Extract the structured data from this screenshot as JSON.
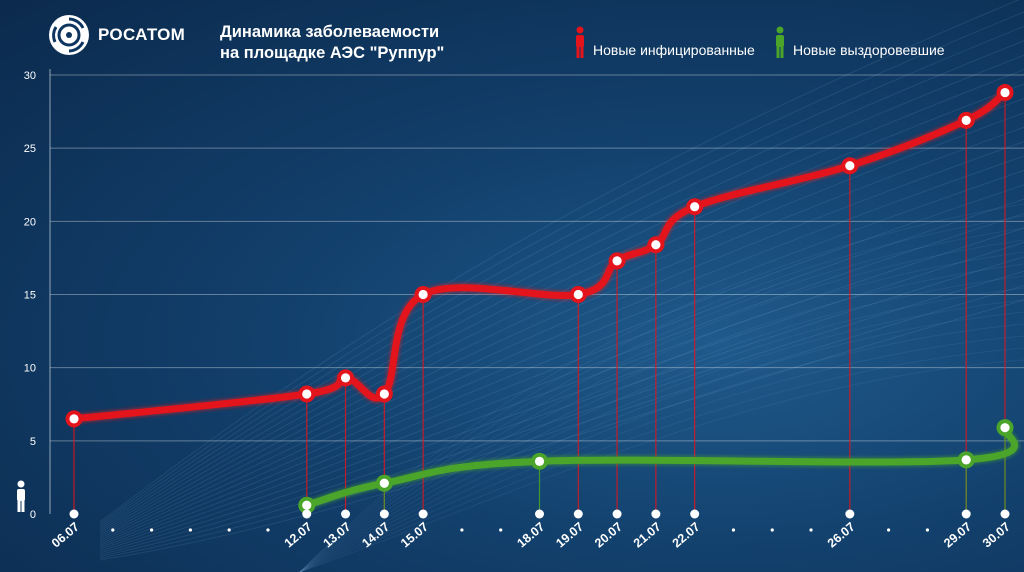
{
  "brand": {
    "name": "РОСАТОМ"
  },
  "chart_data": {
    "type": "line",
    "title_line1": "Динамика заболеваемости",
    "title_line2": "на площадке АЭС \"Руппур\"",
    "ylim": [
      0,
      30
    ],
    "yticks": [
      "0",
      "5",
      "10",
      "15",
      "20",
      "25",
      "30"
    ],
    "x_dates": [
      "06.07",
      "07.07",
      "08.07",
      "09.07",
      "10.07",
      "11.07",
      "12.07",
      "13.07",
      "14.07",
      "15.07",
      "16.07",
      "17.07",
      "18.07",
      "19.07",
      "20.07",
      "21.07",
      "22.07",
      "23.07",
      "24.07",
      "25.07",
      "26.07",
      "27.07",
      "28.07",
      "29.07",
      "30.07"
    ],
    "x_labeled": [
      "06.07",
      "12.07",
      "13.07",
      "14.07",
      "15.07",
      "18.07",
      "19.07",
      "20.07",
      "21.07",
      "22.07",
      "26.07",
      "29.07",
      "30.07"
    ],
    "series": [
      {
        "name": "Новые инфицированные",
        "color": "#e3141b",
        "x": [
          "06.07",
          "12.07",
          "13.07",
          "14.07",
          "15.07",
          "19.07",
          "20.07",
          "21.07",
          "22.07",
          "26.07",
          "29.07",
          "30.07"
        ],
        "values": [
          6.5,
          8.2,
          9.3,
          8.2,
          15.0,
          15.0,
          17.3,
          18.4,
          21.0,
          23.8,
          26.9,
          28.8
        ]
      },
      {
        "name": "Новые выздоровевшие",
        "color": "#4aa52a",
        "x": [
          "12.07",
          "14.07",
          "18.07",
          "29.07",
          "30.07"
        ],
        "values": [
          0.6,
          2.1,
          3.6,
          3.7,
          5.9
        ]
      }
    ],
    "grid": true,
    "legend": "top-right"
  }
}
